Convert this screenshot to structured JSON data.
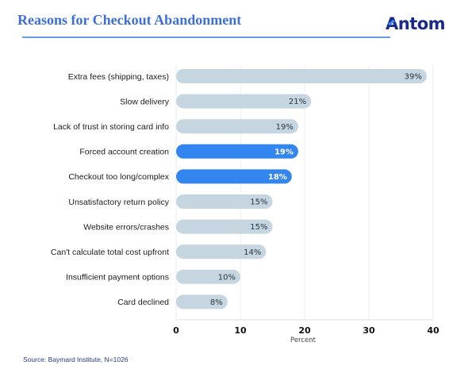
{
  "header": {
    "title": "Reasons for Checkout Abandonment",
    "logo_text": "Antom",
    "logo_rest": "ntom",
    "logo_first": "A"
  },
  "colors": {
    "bar_default": "#c5d6e0",
    "bar_highlight": "#3385f0",
    "gridline": "#eef1f4",
    "title": "#3d6fd8",
    "logo": "#1a2a8c"
  },
  "chart_data": {
    "type": "bar",
    "orientation": "horizontal",
    "title": "Reasons for Checkout Abandonment",
    "xlabel": "Percent",
    "ylabel": "",
    "xlim": [
      0,
      40
    ],
    "xticks": [
      0,
      10,
      20,
      30,
      40
    ],
    "grid": true,
    "categories": [
      "Extra fees (shipping, taxes)",
      "Slow delivery",
      "Lack of trust in storing card info",
      "Forced account creation",
      "Checkout too long/complex",
      "Unsatisfactory return policy",
      "Website errors/crashes",
      "Can't calculate total cost upfront",
      "Insufficient payment options",
      "Card declined"
    ],
    "values": [
      39,
      21,
      19,
      19,
      18,
      15,
      15,
      14,
      10,
      8
    ],
    "value_labels": [
      "39%",
      "21%",
      "19%",
      "19%",
      "18%",
      "15%",
      "15%",
      "14%",
      "10%",
      "8%"
    ],
    "highlighted": [
      false,
      false,
      false,
      true,
      true,
      false,
      false,
      false,
      false,
      false
    ],
    "unit": "%"
  },
  "footer": {
    "source": "Source: Baymard Institute, N=1026"
  }
}
